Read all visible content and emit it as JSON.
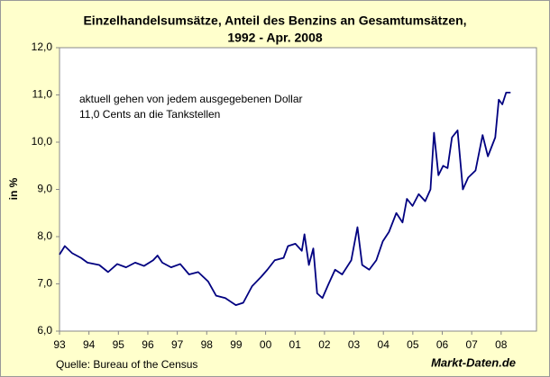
{
  "chart_data": {
    "type": "line",
    "title": [
      "Einzelhandelsumsätze, Anteil des Benzins an Gesamtumsätzen,",
      "1992 - Apr. 2008"
    ],
    "y_label": "in %",
    "annotation": [
      "aktuell gehen von jedem ausgegebenen Dollar",
      "11,0 Cents an die Tankstellen"
    ],
    "source": "Quelle: Bureau of the Census",
    "brand": "Markt-Daten.de",
    "color": "#000080",
    "grid": false,
    "xlim": [
      1993,
      2009.2
    ],
    "xticks": [
      {
        "value": 1993,
        "label": "93"
      },
      {
        "value": 1994,
        "label": "94"
      },
      {
        "value": 1995,
        "label": "95"
      },
      {
        "value": 1996,
        "label": "96"
      },
      {
        "value": 1997,
        "label": "97"
      },
      {
        "value": 1998,
        "label": "98"
      },
      {
        "value": 1999,
        "label": "99"
      },
      {
        "value": 2000,
        "label": "00"
      },
      {
        "value": 2001,
        "label": "01"
      },
      {
        "value": 2002,
        "label": "02"
      },
      {
        "value": 2003,
        "label": "03"
      },
      {
        "value": 2004,
        "label": "04"
      },
      {
        "value": 2005,
        "label": "05"
      },
      {
        "value": 2006,
        "label": "06"
      },
      {
        "value": 2007,
        "label": "07"
      },
      {
        "value": 2008,
        "label": "08"
      }
    ],
    "ylim": [
      6,
      12
    ],
    "yticks": [
      {
        "value": 6,
        "label": "6,0"
      },
      {
        "value": 7,
        "label": "7,0"
      },
      {
        "value": 8,
        "label": "8,0"
      },
      {
        "value": 9,
        "label": "9,0"
      },
      {
        "value": 10,
        "label": "10,0"
      },
      {
        "value": 11,
        "label": "11,0"
      },
      {
        "value": 12,
        "label": "12,0"
      }
    ],
    "x": [
      1993.0,
      1993.18,
      1993.43,
      1993.73,
      1993.95,
      1994.35,
      1994.65,
      1994.96,
      1995.26,
      1995.57,
      1995.87,
      1996.18,
      1996.33,
      1996.49,
      1996.79,
      1997.1,
      1997.4,
      1997.71,
      1998.05,
      1998.32,
      1998.63,
      1998.99,
      1999.24,
      1999.54,
      1999.85,
      2000.06,
      2000.31,
      2000.61,
      2000.76,
      2001.01,
      2001.23,
      2001.32,
      2001.47,
      2001.62,
      2001.75,
      2001.93,
      2002.14,
      2002.36,
      2002.6,
      2002.91,
      2003.12,
      2003.28,
      2003.52,
      2003.76,
      2003.98,
      2004.19,
      2004.44,
      2004.65,
      2004.8,
      2004.99,
      2005.2,
      2005.42,
      2005.6,
      2005.72,
      2005.87,
      2006.03,
      2006.18,
      2006.33,
      2006.52,
      2006.7,
      2006.88,
      2007.13,
      2007.37,
      2007.55,
      2007.8,
      2007.92,
      2008.04,
      2008.17,
      2008.32
    ],
    "values": [
      7.62,
      7.8,
      7.65,
      7.55,
      7.45,
      7.4,
      7.25,
      7.42,
      7.35,
      7.45,
      7.38,
      7.5,
      7.6,
      7.45,
      7.35,
      7.42,
      7.2,
      7.25,
      7.05,
      6.75,
      6.7,
      6.55,
      6.6,
      6.95,
      7.15,
      7.3,
      7.5,
      7.55,
      7.8,
      7.85,
      7.7,
      8.05,
      7.4,
      7.75,
      6.8,
      6.7,
      7.0,
      7.3,
      7.2,
      7.5,
      8.2,
      7.4,
      7.3,
      7.5,
      7.9,
      8.1,
      8.5,
      8.3,
      8.8,
      8.65,
      8.9,
      8.75,
      9.0,
      10.2,
      9.3,
      9.5,
      9.45,
      10.1,
      10.25,
      9.0,
      9.25,
      9.4,
      10.15,
      9.7,
      10.1,
      10.9,
      10.8,
      11.05,
      11.05
    ]
  }
}
